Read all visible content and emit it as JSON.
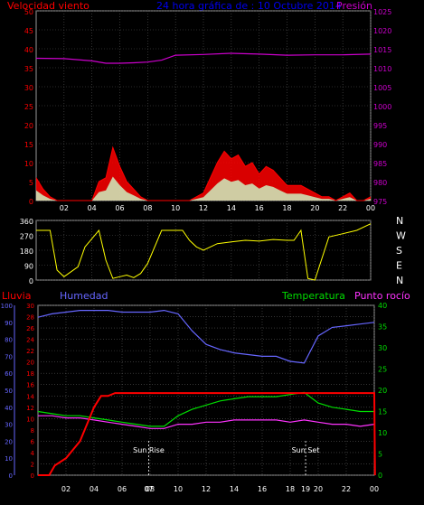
{
  "colors": {
    "wind": "#ff0000",
    "gust_fill": "#ff0000",
    "wind_avg_fill": "#ccffcc",
    "pressure": "#cc00cc",
    "direction": "#ffff00",
    "humidity": "#6666ff",
    "temperature": "#00dd00",
    "dewpoint": "#ff33ff",
    "rain": "#ff0000",
    "grid": "#555555",
    "frame": "#999999"
  },
  "top": {
    "title": "24 hora gráfica de : 10 Octubre 2014",
    "wind_label": "Velocidad viento",
    "pressure_label": "Presión"
  },
  "middle": {
    "compass": [
      "N",
      "W",
      "S",
      "E",
      "N"
    ]
  },
  "bottom": {
    "rain_label": "Lluvia",
    "humidity_label": "Humedad",
    "temperature_label": "Temperatura",
    "dewpoint_label": "Punto rocío",
    "sunrise_label": "Sun Rise",
    "sunset_label": "Sun Set"
  },
  "chart_data": [
    {
      "type": "line",
      "series": [
        {
          "name": "Velocidad viento",
          "x": [
            0,
            0.5,
            1,
            1.5,
            2,
            2.5,
            3,
            3.5,
            4,
            4.5,
            5,
            5.5,
            6,
            6.5,
            7,
            7.5,
            8,
            8.5,
            9,
            9.5,
            10,
            10.5,
            11,
            11.5,
            12,
            12.5,
            13,
            13.5,
            14,
            14.5,
            15,
            15.5,
            16,
            16.5,
            17,
            17.5,
            18,
            18.5,
            19,
            19.5,
            20,
            20.5,
            21,
            21.5,
            22,
            22.5,
            23,
            23.5,
            24
          ],
          "values": [
            6,
            3,
            1,
            0,
            0,
            0,
            0,
            0,
            0,
            5,
            6,
            14,
            9,
            5,
            3,
            1,
            0,
            0,
            0,
            0,
            0,
            0,
            0,
            1,
            2,
            6,
            10,
            13,
            11,
            12,
            9,
            10,
            7,
            9,
            8,
            6,
            4,
            4,
            4,
            3,
            2,
            1,
            1,
            0,
            1,
            2,
            0,
            0,
            1
          ]
        },
        {
          "name": "Presión",
          "x": [
            0,
            2,
            4,
            5,
            6,
            7,
            8,
            9,
            10,
            12,
            14,
            16,
            18,
            20,
            22,
            24
          ],
          "values": [
            1012.5,
            1012.4,
            1011.8,
            1011.2,
            1011.2,
            1011.3,
            1011.5,
            1012,
            1013.3,
            1013.5,
            1013.8,
            1013.6,
            1013.3,
            1013.4,
            1013.4,
            1013.6
          ]
        }
      ],
      "x_ticks": [
        "02",
        "04",
        "06",
        "08",
        "10",
        "12",
        "14",
        "16",
        "18",
        "20",
        "22",
        "00"
      ],
      "y_left_ticks": [
        0,
        5,
        10,
        15,
        20,
        25,
        30,
        35,
        40,
        45,
        50
      ],
      "y_left_range": [
        0,
        50
      ],
      "y_right_ticks": [
        975,
        980,
        985,
        990,
        995,
        1000,
        1005,
        1010,
        1015,
        1020,
        1025
      ],
      "y_right_range": [
        975,
        1025
      ]
    },
    {
      "type": "line",
      "series": [
        {
          "name": "Dirección",
          "x": [
            0,
            1,
            1.5,
            2,
            3,
            3.5,
            4,
            4.5,
            5,
            5.5,
            6,
            6.5,
            7,
            7.5,
            8,
            9,
            10,
            10.5,
            11,
            11.5,
            12,
            13,
            14,
            15,
            16,
            17,
            18,
            18.5,
            19,
            19.5,
            20,
            21,
            22,
            23,
            24
          ],
          "values": [
            300,
            300,
            60,
            20,
            80,
            200,
            250,
            300,
            120,
            10,
            20,
            30,
            15,
            40,
            100,
            300,
            300,
            300,
            240,
            200,
            180,
            220,
            230,
            240,
            235,
            245,
            240,
            240,
            300,
            10,
            0,
            260,
            280,
            300,
            340
          ]
        }
      ],
      "x_ticks": [
        "02",
        "04",
        "06",
        "08",
        "10",
        "12",
        "14",
        "16",
        "18",
        "20",
        "22",
        "00"
      ],
      "y_ticks": [
        0,
        90,
        180,
        270,
        360
      ],
      "y_range": [
        0,
        360
      ]
    },
    {
      "type": "line",
      "series": [
        {
          "name": "Humedad",
          "x": [
            0,
            1,
            2,
            3,
            4,
            5,
            6,
            7,
            8,
            9,
            10,
            11,
            12,
            13,
            14,
            15,
            16,
            17,
            18,
            19,
            20,
            21,
            22,
            23,
            24
          ],
          "values": [
            93,
            95,
            96,
            97,
            97,
            97,
            96,
            96,
            96,
            97,
            95,
            85,
            77,
            74,
            72,
            71,
            70,
            70,
            67,
            66,
            82,
            87,
            88,
            89,
            90
          ]
        },
        {
          "name": "Temperatura",
          "x": [
            0,
            1,
            2,
            3,
            4,
            5,
            6,
            7,
            8,
            9,
            10,
            11,
            12,
            13,
            14,
            15,
            16,
            17,
            18,
            19,
            20,
            21,
            22,
            23,
            24
          ],
          "values": [
            15,
            14.5,
            14,
            14,
            13.5,
            13,
            12.5,
            12,
            11.5,
            11.5,
            14,
            15.5,
            16.5,
            17.5,
            18,
            18.5,
            18.5,
            18.5,
            19,
            19.5,
            17,
            16,
            15.5,
            15,
            15
          ]
        },
        {
          "name": "Punto rocío",
          "x": [
            0,
            1,
            2,
            3,
            4,
            5,
            6,
            7,
            8,
            9,
            10,
            11,
            12,
            13,
            14,
            15,
            16,
            17,
            18,
            19,
            20,
            21,
            22,
            23,
            24
          ],
          "values": [
            14,
            14,
            13.5,
            13.5,
            13,
            12.5,
            12,
            11.5,
            11,
            11,
            12,
            12,
            12.5,
            12.5,
            13,
            13,
            13,
            13,
            12.5,
            13,
            12.5,
            12,
            12,
            11.5,
            12
          ]
        },
        {
          "name": "Lluvia",
          "x": [
            0,
            0.8,
            1.2,
            2,
            3,
            4,
            4.5,
            5,
            5.5,
            24,
            24.05
          ],
          "values": [
            0,
            0,
            1.7,
            3,
            6,
            12,
            14,
            14,
            14.5,
            14.5,
            0
          ]
        }
      ],
      "x_ticks": [
        "02",
        "04",
        "06",
        "08",
        "10",
        "12",
        "14",
        "16",
        "18",
        "20",
        "22",
        "00"
      ],
      "humidity_ticks": [
        0,
        10,
        20,
        30,
        40,
        50,
        60,
        70,
        80,
        90,
        100
      ],
      "humidity_range": [
        0,
        100
      ],
      "rain_ticks": [
        0,
        2,
        4,
        6,
        8,
        10,
        12,
        14,
        16,
        18,
        20,
        22,
        24,
        26,
        28,
        30
      ],
      "rain_range": [
        0,
        30
      ],
      "temp_ticks": [
        0,
        5,
        10,
        15,
        20,
        25,
        30,
        35,
        40
      ],
      "temp_range": [
        0,
        40
      ],
      "sunrise_hour": 7.9,
      "sunset_hour": 19.1,
      "sunrise_tick": "07",
      "sunset_tick": "19"
    }
  ]
}
